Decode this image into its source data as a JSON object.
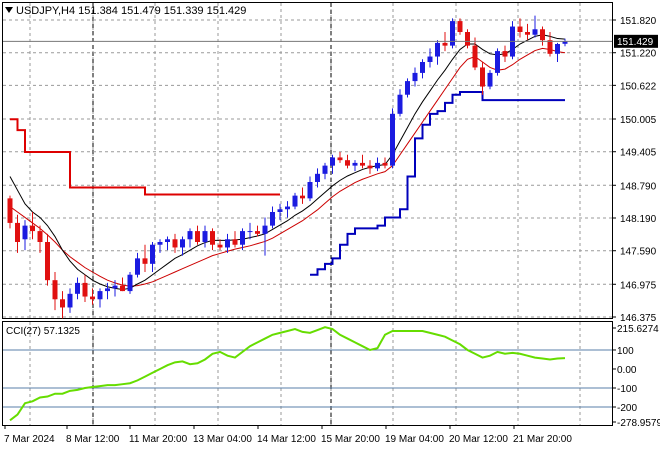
{
  "symbol_header": "USDJPY,H4  151.384 151.479 151.339 151.429",
  "colors": {
    "bull": "#1b1be0",
    "bear": "#e01010",
    "ma_fast": "#000000",
    "ma_slow": "#cc0000",
    "channel_upper": "#dd0000",
    "channel_lower": "#0000bb",
    "cci_line": "#66dd00",
    "cci_level": "#5a7fa8",
    "grid": "#9a9a9a",
    "price_tag_bg": "#000000",
    "price_tag_fg": "#ffffff"
  },
  "chart_data": [
    {
      "type": "candlestick",
      "title": "USDJPY,H4",
      "ohlc_readout": {
        "open": 151.384,
        "high": 151.479,
        "low": 151.339,
        "close": 151.429
      },
      "current_price_label": "151.429",
      "y_tick_labels": [
        "151.820",
        "151.220",
        "150.622",
        "150.005",
        "149.405",
        "148.790",
        "148.190",
        "147.590",
        "146.975",
        "146.375"
      ],
      "x_tick_labels": [
        "7 Mar 2024",
        "8 Mar 12:00",
        "11 Mar 20:00",
        "13 Mar 04:00",
        "14 Mar 12:00",
        "15 Mar 20:00",
        "19 Mar 04:00",
        "20 Mar 12:00",
        "21 Mar 20:00"
      ],
      "ylim": [
        146.375,
        151.82
      ],
      "grid": true,
      "series": [
        {
          "kind": "ohlc",
          "values": [
            [
              148.55,
              148.6,
              148.0,
              148.1
            ],
            [
              148.1,
              148.25,
              147.55,
              147.75
            ],
            [
              147.8,
              148.15,
              147.6,
              148.05
            ],
            [
              148.05,
              148.3,
              147.8,
              147.95
            ],
            [
              147.95,
              148.05,
              147.55,
              147.75
            ],
            [
              147.75,
              147.9,
              146.95,
              147.05
            ],
            [
              147.05,
              147.2,
              146.5,
              146.7
            ],
            [
              146.7,
              146.85,
              146.35,
              146.55
            ],
            [
              146.55,
              146.9,
              146.45,
              146.8
            ],
            [
              146.8,
              147.1,
              146.7,
              147.0
            ],
            [
              147.0,
              147.15,
              146.65,
              146.75
            ],
            [
              146.75,
              146.9,
              146.6,
              146.7
            ],
            [
              146.7,
              146.9,
              146.55,
              146.85
            ],
            [
              146.85,
              147.0,
              146.7,
              146.9
            ],
            [
              146.9,
              147.05,
              146.75,
              146.95
            ],
            [
              146.95,
              147.1,
              146.85,
              146.85
            ],
            [
              146.85,
              147.2,
              146.8,
              147.15
            ],
            [
              147.15,
              147.55,
              147.1,
              147.45
            ],
            [
              147.45,
              147.7,
              147.2,
              147.35
            ],
            [
              147.35,
              147.75,
              147.2,
              147.7
            ],
            [
              147.7,
              147.8,
              147.55,
              147.75
            ],
            [
              147.75,
              147.85,
              147.6,
              147.8
            ],
            [
              147.8,
              147.9,
              147.55,
              147.65
            ],
            [
              147.65,
              147.85,
              147.5,
              147.8
            ],
            [
              147.8,
              148.0,
              147.65,
              147.95
            ],
            [
              147.95,
              148.05,
              147.7,
              147.75
            ],
            [
              147.75,
              148.05,
              147.65,
              147.95
            ],
            [
              147.95,
              148.0,
              147.6,
              147.7
            ],
            [
              147.7,
              147.8,
              147.6,
              147.65
            ],
            [
              147.65,
              147.9,
              147.55,
              147.8
            ],
            [
              147.8,
              147.95,
              147.65,
              147.7
            ],
            [
              147.7,
              148.0,
              147.6,
              147.95
            ],
            [
              147.95,
              148.1,
              147.8,
              147.95
            ],
            [
              147.95,
              148.05,
              147.85,
              147.9
            ],
            [
              147.9,
              148.2,
              147.5,
              148.05
            ],
            [
              148.05,
              148.4,
              148.0,
              148.3
            ],
            [
              148.3,
              148.45,
              148.15,
              148.35
            ],
            [
              148.35,
              148.5,
              148.2,
              148.4
            ],
            [
              148.4,
              148.65,
              148.35,
              148.6
            ],
            [
              148.6,
              148.75,
              148.45,
              148.55
            ],
            [
              148.55,
              148.95,
              148.5,
              148.85
            ],
            [
              148.85,
              149.1,
              148.75,
              149.0
            ],
            [
              149.0,
              149.2,
              148.9,
              149.15
            ],
            [
              149.15,
              149.35,
              149.0,
              149.3
            ],
            [
              149.3,
              149.4,
              149.2,
              149.25
            ],
            [
              149.25,
              149.35,
              149.1,
              149.15
            ],
            [
              149.15,
              149.25,
              149.05,
              149.2
            ],
            [
              149.2,
              149.35,
              149.1,
              149.15
            ],
            [
              149.15,
              149.25,
              149.0,
              149.1
            ],
            [
              149.1,
              149.3,
              149.05,
              149.2
            ],
            [
              149.2,
              149.3,
              149.1,
              149.15
            ],
            [
              149.15,
              150.2,
              149.1,
              150.1
            ],
            [
              150.1,
              150.55,
              150.05,
              150.45
            ],
            [
              150.45,
              150.75,
              150.4,
              150.7
            ],
            [
              150.7,
              150.95,
              150.6,
              150.85
            ],
            [
              150.85,
              151.1,
              150.75,
              151.05
            ],
            [
              151.05,
              151.3,
              150.95,
              151.15
            ],
            [
              151.15,
              151.45,
              151.0,
              151.4
            ],
            [
              151.4,
              151.6,
              151.25,
              151.35
            ],
            [
              151.35,
              151.85,
              151.3,
              151.8
            ],
            [
              151.8,
              151.85,
              151.55,
              151.6
            ],
            [
              151.6,
              151.65,
              151.3,
              151.35
            ],
            [
              151.35,
              151.5,
              150.9,
              150.95
            ],
            [
              150.95,
              151.05,
              150.45,
              150.6
            ],
            [
              150.6,
              150.9,
              150.55,
              150.85
            ],
            [
              150.85,
              151.3,
              150.8,
              151.25
            ],
            [
              151.25,
              151.35,
              151.05,
              151.15
            ],
            [
              151.15,
              151.8,
              151.1,
              151.7
            ],
            [
              151.7,
              151.85,
              151.5,
              151.6
            ],
            [
              151.6,
              151.75,
              151.45,
              151.55
            ],
            [
              151.55,
              151.9,
              151.5,
              151.65
            ],
            [
              151.65,
              151.7,
              151.35,
              151.45
            ],
            [
              151.45,
              151.6,
              151.15,
              151.2
            ],
            [
              151.2,
              151.4,
              151.05,
              151.38
            ],
            [
              151.384,
              151.479,
              151.339,
              151.429
            ]
          ]
        },
        {
          "kind": "moving_average_fast",
          "values": [
            148.95,
            148.7,
            148.45,
            148.3,
            148.2,
            148.05,
            147.85,
            147.6,
            147.4,
            147.25,
            147.15,
            147.05,
            146.98,
            146.93,
            146.9,
            146.88,
            146.9,
            146.98,
            147.05,
            147.15,
            147.25,
            147.35,
            147.45,
            147.52,
            147.6,
            147.68,
            147.74,
            147.78,
            147.78,
            147.78,
            147.79,
            147.8,
            147.83,
            147.86,
            147.9,
            147.98,
            148.06,
            148.14,
            148.24,
            148.32,
            148.42,
            148.54,
            148.66,
            148.78,
            148.88,
            148.96,
            149.02,
            149.08,
            149.12,
            149.15,
            149.17,
            149.35,
            149.6,
            149.85,
            150.1,
            150.32,
            150.52,
            150.72,
            150.9,
            151.1,
            151.28,
            151.38,
            151.38,
            151.28,
            151.2,
            151.18,
            151.2,
            151.28,
            151.38,
            151.45,
            151.52,
            151.55,
            151.52,
            151.48,
            151.47
          ]
        },
        {
          "kind": "moving_average_slow",
          "values": [
            148.4,
            148.3,
            148.2,
            148.1,
            148.0,
            147.88,
            147.75,
            147.6,
            147.48,
            147.38,
            147.28,
            147.2,
            147.12,
            147.05,
            147.0,
            146.96,
            146.94,
            146.95,
            146.98,
            147.02,
            147.08,
            147.14,
            147.2,
            147.26,
            147.32,
            147.38,
            147.44,
            147.5,
            147.54,
            147.58,
            147.62,
            147.65,
            147.68,
            147.72,
            147.76,
            147.82,
            147.9,
            147.98,
            148.06,
            148.14,
            148.24,
            148.34,
            148.46,
            148.58,
            148.68,
            148.76,
            148.84,
            148.9,
            148.95,
            149.0,
            149.04,
            149.15,
            149.35,
            149.55,
            149.75,
            149.95,
            150.15,
            150.35,
            150.55,
            150.75,
            150.95,
            151.1,
            151.15,
            151.05,
            150.95,
            150.9,
            150.92,
            151.0,
            151.1,
            151.18,
            151.26,
            151.3,
            151.28,
            151.24,
            151.22
          ]
        },
        {
          "kind": "channel_upper_step",
          "values": [
            150.0,
            149.8,
            149.4,
            149.4,
            149.4,
            149.4,
            149.4,
            149.4,
            148.75,
            148.75,
            148.75,
            148.75,
            148.75,
            148.75,
            148.75,
            148.75,
            148.75,
            148.75,
            148.62,
            148.62,
            148.62,
            148.62,
            148.62,
            148.62,
            148.62,
            148.62,
            148.62,
            148.62,
            148.62,
            148.62,
            148.62,
            148.62,
            148.62,
            148.62,
            148.62,
            148.62,
            148.62
          ]
        },
        {
          "kind": "channel_lower_step",
          "x_start": 40,
          "values": [
            147.15,
            147.25,
            147.35,
            147.45,
            147.7,
            147.9,
            148.0,
            148.0,
            148.0,
            148.05,
            148.2,
            148.2,
            148.35,
            148.95,
            149.65,
            149.9,
            150.1,
            150.15,
            150.3,
            150.45,
            150.5,
            150.5,
            150.5,
            150.35,
            150.35,
            150.35,
            150.35,
            150.35,
            150.35,
            150.35,
            150.35,
            150.35,
            150.35,
            150.35,
            150.35
          ]
        }
      ]
    },
    {
      "type": "line",
      "title": "CCI(27) 57.1325",
      "y_tick_labels": [
        "215.6274",
        "100",
        "0.00",
        "-100",
        "-200",
        "-278.9579"
      ],
      "ylim": [
        -278.9579,
        215.6274
      ],
      "levels": [
        100,
        -100,
        -200
      ],
      "series": [
        {
          "name": "CCI(27)",
          "values": [
            -270,
            -240,
            -180,
            -170,
            -150,
            -145,
            -130,
            -130,
            -115,
            -110,
            -100,
            -95,
            -90,
            -85,
            -85,
            -80,
            -75,
            -60,
            -40,
            -20,
            0,
            20,
            35,
            40,
            25,
            30,
            50,
            80,
            90,
            70,
            60,
            90,
            120,
            140,
            160,
            180,
            190,
            200,
            210,
            195,
            190,
            205,
            220,
            210,
            180,
            160,
            140,
            120,
            100,
            110,
            180,
            200,
            200,
            200,
            200,
            200,
            190,
            180,
            170,
            150,
            130,
            100,
            80,
            60,
            70,
            90,
            80,
            85,
            80,
            70,
            60,
            55,
            50,
            55,
            57
          ]
        }
      ]
    }
  ]
}
